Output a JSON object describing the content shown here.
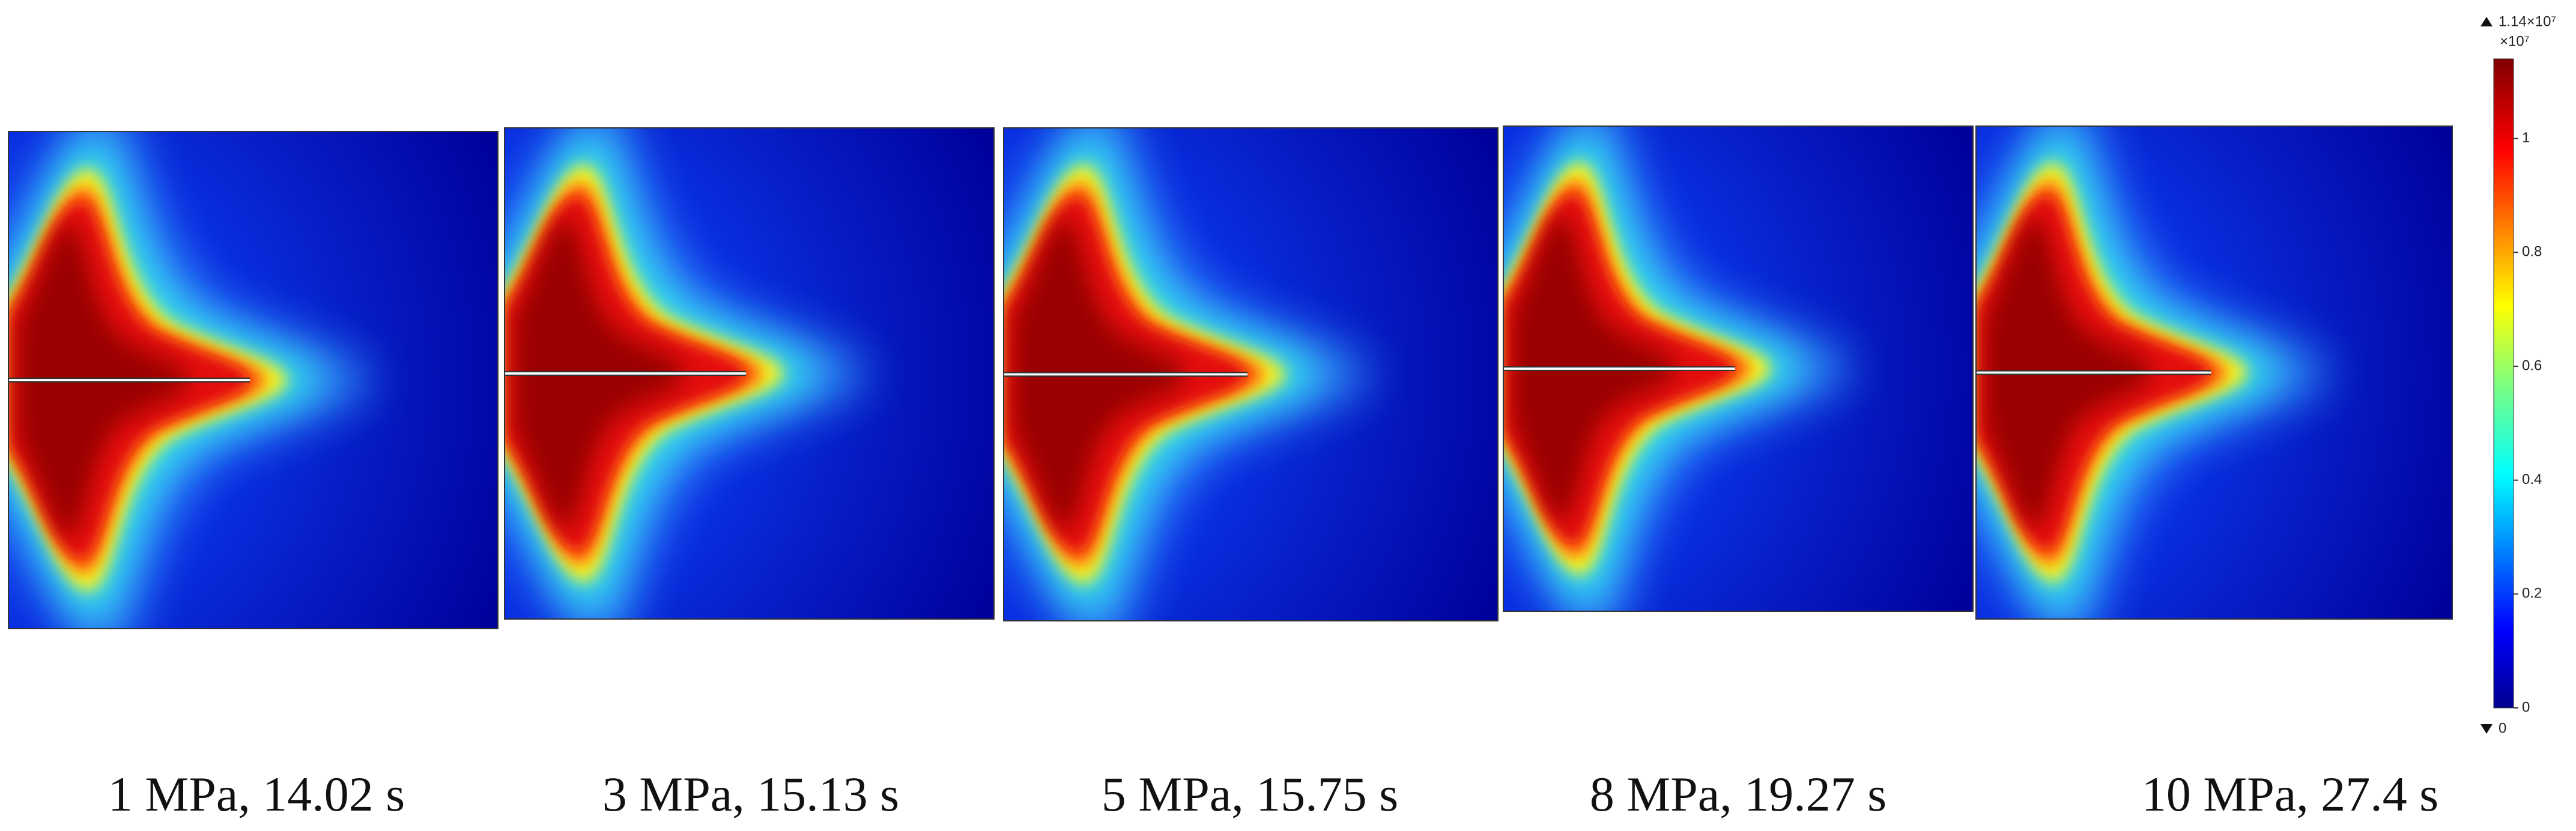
{
  "panels": [
    {
      "label": "1 MPa, 14.02 s"
    },
    {
      "label": "3 MPa, 15.13 s"
    },
    {
      "label": "5 MPa, 15.75 s"
    },
    {
      "label": "8 MPa, 19.27 s"
    },
    {
      "label": "10 MPa, 27.4 s"
    }
  ],
  "colorbar": {
    "max_label": "1.14×10⁷",
    "multiplier": "×10⁷",
    "min_label": "0",
    "lim": [
      0,
      1.14
    ],
    "ticks": [
      0,
      0.2,
      0.4,
      0.6,
      0.8,
      1
    ]
  }
}
